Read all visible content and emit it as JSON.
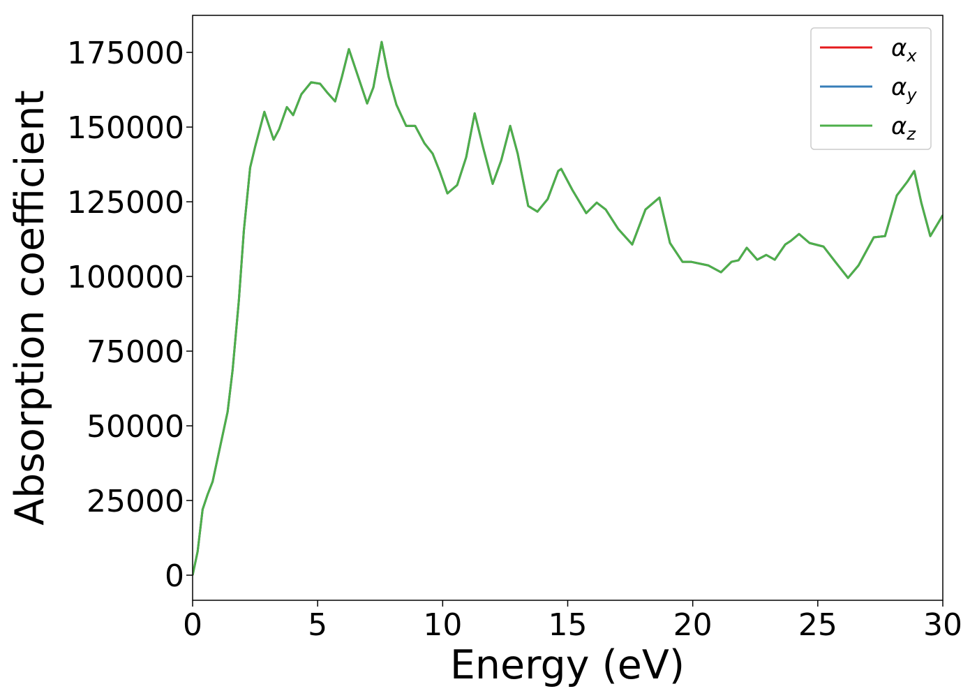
{
  "chart_data": {
    "type": "line",
    "xlabel": "Energy (eV)",
    "ylabel": "Absorption coefficient",
    "x": [
      0,
      0.2,
      0.4,
      0.6,
      0.8,
      1.1,
      1.4,
      1.6,
      1.85,
      2.05,
      2.3,
      2.5,
      2.87,
      3.24,
      3.46,
      3.77,
      4.02,
      4.35,
      4.74,
      5.1,
      5.4,
      5.7,
      5.97,
      6.25,
      6.53,
      6.98,
      7.23,
      7.56,
      7.84,
      8.15,
      8.54,
      8.9,
      9.27,
      9.6,
      9.88,
      10.19,
      10.58,
      10.94,
      11.28,
      11.61,
      12.0,
      12.34,
      12.7,
      13.0,
      13.42,
      13.79,
      14.2,
      14.62,
      14.74,
      15.19,
      15.74,
      16.16,
      16.52,
      17.02,
      17.58,
      18.11,
      18.67,
      19.09,
      19.59,
      19.93,
      20.62,
      21.13,
      21.55,
      21.83,
      22.16,
      22.58,
      22.94,
      23.28,
      23.7,
      23.92,
      24.25,
      24.67,
      25.23,
      25.7,
      26.21,
      26.63,
      27.24,
      27.69,
      28.16,
      28.58,
      28.86,
      29.14,
      29.5,
      30.0
    ],
    "series": [
      {
        "name": "αx",
        "color": "#e41a1c",
        "values": [
          0,
          7900,
          22000,
          27000,
          31300,
          43000,
          54700,
          68700,
          92000,
          115400,
          136400,
          143400,
          155100,
          145800,
          149300,
          156700,
          154000,
          161000,
          165000,
          164500,
          161400,
          158600,
          166800,
          176100,
          169100,
          157900,
          163300,
          178500,
          166800,
          157500,
          150400,
          150400,
          144600,
          141100,
          135200,
          127800,
          130600,
          139900,
          154600,
          143400,
          131000,
          138800,
          150400,
          141100,
          123600,
          121700,
          125900,
          135300,
          136000,
          128900,
          121200,
          124700,
          122400,
          115900,
          110700,
          122400,
          126400,
          111200,
          104900,
          104900,
          103700,
          101400,
          104900,
          105400,
          109600,
          105600,
          107200,
          105600,
          110700,
          111900,
          114200,
          111200,
          110000,
          104900,
          99500,
          103700,
          113100,
          113500,
          127100,
          131700,
          135300,
          124700,
          113500,
          120500
        ]
      },
      {
        "name": "αy",
        "color": "#377eb8",
        "values": [
          0,
          7900,
          22000,
          27000,
          31300,
          43000,
          54700,
          68700,
          92000,
          115400,
          136400,
          143400,
          155100,
          145800,
          149300,
          156700,
          154000,
          161000,
          165000,
          164500,
          161400,
          158600,
          166800,
          176100,
          169100,
          157900,
          163300,
          178500,
          166800,
          157500,
          150400,
          150400,
          144600,
          141100,
          135200,
          127800,
          130600,
          139900,
          154600,
          143400,
          131000,
          138800,
          150400,
          141100,
          123600,
          121700,
          125900,
          135300,
          136000,
          128900,
          121200,
          124700,
          122400,
          115900,
          110700,
          122400,
          126400,
          111200,
          104900,
          104900,
          103700,
          101400,
          104900,
          105400,
          109600,
          105600,
          107200,
          105600,
          110700,
          111900,
          114200,
          111200,
          110000,
          104900,
          99500,
          103700,
          113100,
          113500,
          127100,
          131700,
          135300,
          124700,
          113500,
          120500
        ]
      },
      {
        "name": "αz",
        "color": "#4daf4a",
        "values": [
          0,
          7900,
          22000,
          27000,
          31300,
          43000,
          54700,
          68700,
          92000,
          115400,
          136400,
          143400,
          155100,
          145800,
          149300,
          156700,
          154000,
          161000,
          165000,
          164500,
          161400,
          158600,
          166800,
          176100,
          169100,
          157900,
          163300,
          178500,
          166800,
          157500,
          150400,
          150400,
          144600,
          141100,
          135200,
          127800,
          130600,
          139900,
          154600,
          143400,
          131000,
          138800,
          150400,
          141100,
          123600,
          121700,
          125900,
          135300,
          136000,
          128900,
          121200,
          124700,
          122400,
          115900,
          110700,
          122400,
          126400,
          111200,
          104900,
          104900,
          103700,
          101400,
          104900,
          105400,
          109600,
          105600,
          107200,
          105600,
          110700,
          111900,
          114200,
          111200,
          110000,
          104900,
          99500,
          103700,
          113100,
          113500,
          127100,
          131700,
          135300,
          124700,
          113500,
          120500
        ]
      }
    ],
    "xlim": [
      0,
      30
    ],
    "xticks": [
      0,
      5,
      10,
      15,
      20,
      25,
      30
    ],
    "ylim": [
      -8400,
      187400
    ],
    "yticks": [
      0,
      25000,
      50000,
      75000,
      100000,
      125000,
      150000,
      175000
    ],
    "grid": false,
    "legend": "upper right"
  }
}
